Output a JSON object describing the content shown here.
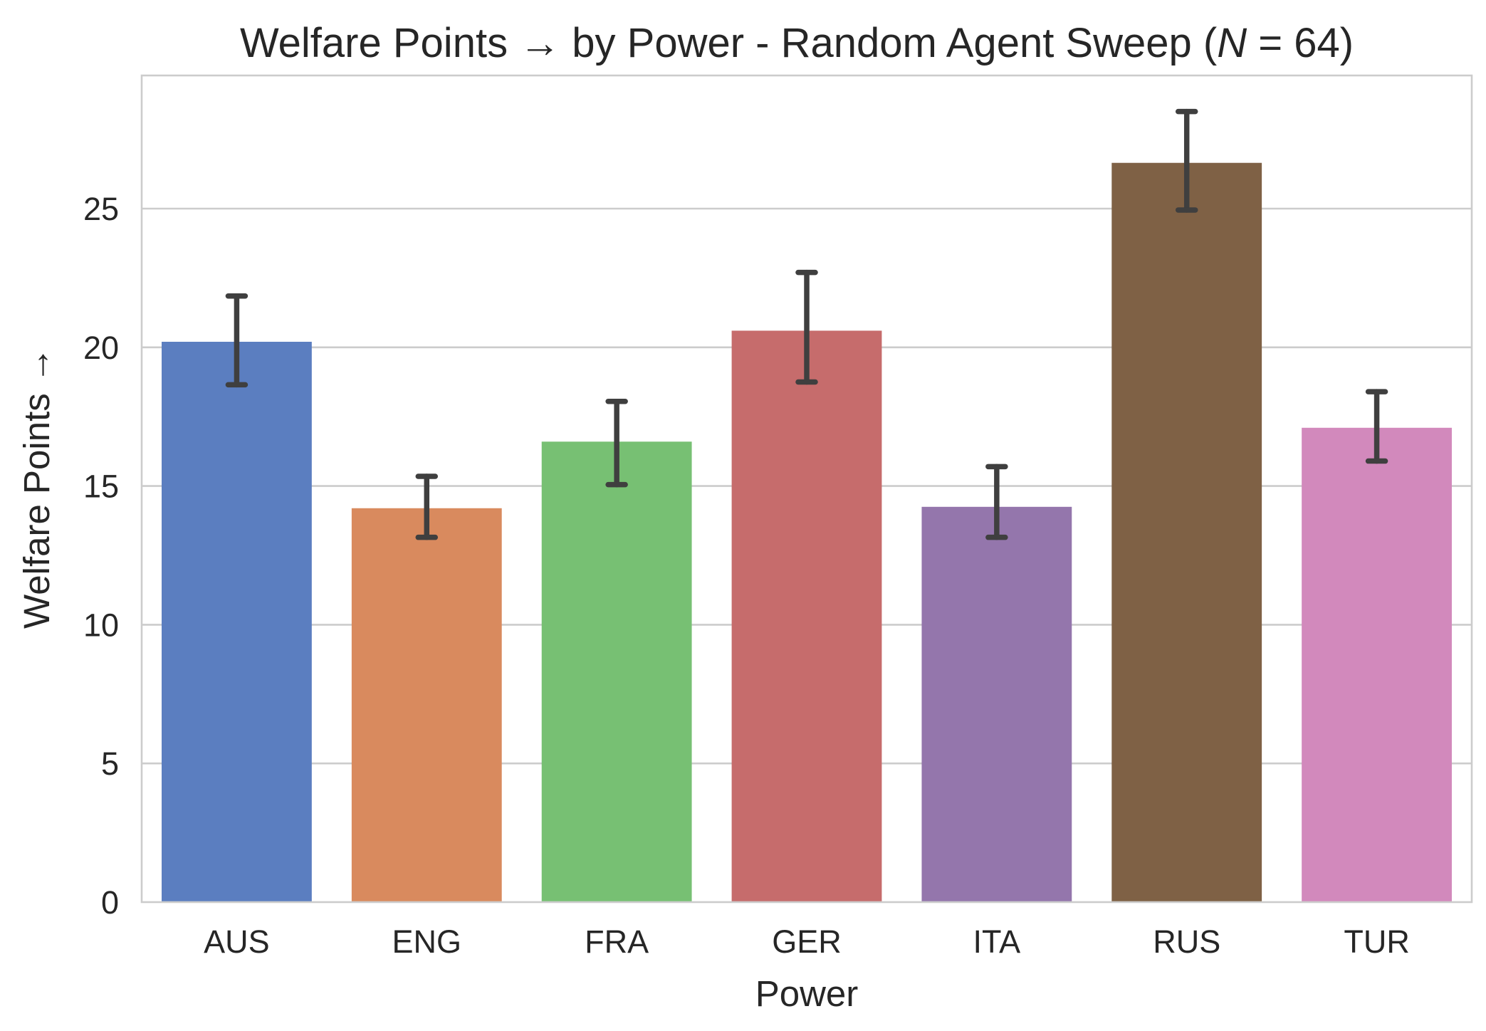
{
  "chart_data": {
    "type": "bar",
    "title": "Welfare Points → by Power - Random Agent Sweep (N = 64)",
    "title_parts": {
      "prefix": "Welfare Points → by Power - Random Agent Sweep (",
      "italic_var": "N",
      "suffix": " = 64)"
    },
    "xlabel": "Power",
    "ylabel": "Welfare Points →",
    "categories": [
      "AUS",
      "ENG",
      "FRA",
      "GER",
      "ITA",
      "RUS",
      "TUR"
    ],
    "values": [
      20.2,
      14.2,
      16.6,
      20.6,
      14.25,
      26.65,
      17.1
    ],
    "error_low": [
      18.65,
      13.15,
      15.05,
      18.75,
      13.15,
      24.95,
      15.9
    ],
    "error_high": [
      21.85,
      15.35,
      18.05,
      22.7,
      15.7,
      28.5,
      18.4
    ],
    "colors": [
      "#5b7ec0",
      "#d98a5e",
      "#77c073",
      "#c66c6c",
      "#9476ac",
      "#7f6145",
      "#d289bc"
    ],
    "ylim": [
      0,
      29.8
    ],
    "yticks": [
      0,
      5,
      10,
      15,
      20,
      25
    ],
    "ytick_labels": [
      "0",
      "5",
      "10",
      "15",
      "20",
      "25"
    ],
    "grid": true,
    "grid_axis": "y",
    "legend": false
  }
}
